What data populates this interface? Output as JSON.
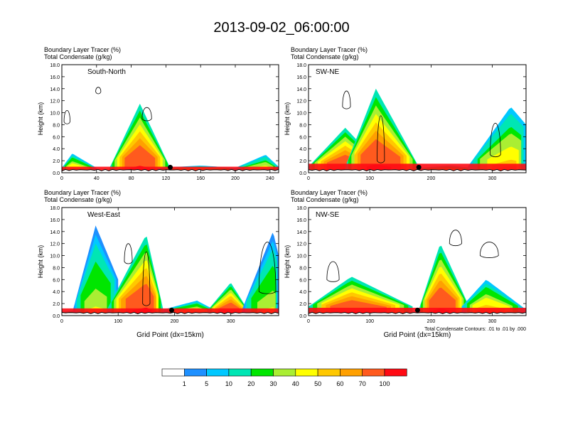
{
  "page": {
    "title": "2013-09-02_06:00:00",
    "contour_note": "Total Condensate Contours: .01 to .01 by .000"
  },
  "colors": {
    "levels": [
      "#ffffff",
      "#1e90ff",
      "#00c8ff",
      "#00e6b4",
      "#00e600",
      "#aaee33",
      "#ffff00",
      "#ffc800",
      "#ffa000",
      "#ff5a1e",
      "#ff0a14"
    ],
    "contour": "#000000",
    "terrain": "#000000"
  },
  "colorbar": {
    "labels": [
      "1",
      "5",
      "10",
      "20",
      "30",
      "40",
      "50",
      "60",
      "70",
      "100"
    ]
  },
  "chart_data": [
    {
      "type": "heatmap",
      "panel_label": "South-North",
      "fields": [
        "Boundary Layer Tracer   (%)",
        "Total Condensate   (g/kg)"
      ],
      "ylabel": "Height (km)",
      "xlabel": "",
      "ylim": [
        0,
        18
      ],
      "yticks": [
        "0.0",
        "2.0",
        "4.0",
        "6.0",
        "8.0",
        "10.0",
        "12.0",
        "14.0",
        "16.0",
        "18.0"
      ],
      "xlim": [
        0,
        250
      ],
      "xticks": [
        0,
        40,
        80,
        120,
        160,
        200,
        240
      ],
      "plumes": [
        {
          "x": [
            0,
            12,
            40
          ],
          "top": [
            0.8,
            3.2,
            0.8
          ],
          "peak": 70
        },
        {
          "x": [
            55,
            90,
            125
          ],
          "top": [
            0.8,
            11.5,
            0.8
          ],
          "peak": 100
        },
        {
          "x": [
            110,
            160,
            200
          ],
          "top": [
            0.8,
            1.2,
            0.8
          ],
          "peak": 80
        },
        {
          "x": [
            200,
            235,
            250
          ],
          "top": [
            0.8,
            3.0,
            1.0
          ],
          "peak": 60
        }
      ],
      "base_top": 1.0,
      "contours": [
        {
          "x": [
            90,
            98,
            101
          ],
          "y": [
            9,
            11.5,
            10
          ]
        },
        {
          "x": [
            1,
            6,
            8
          ],
          "y": [
            8.5,
            11,
            9
          ]
        },
        {
          "x": [
            38,
            42,
            44
          ],
          "y": [
            13.5,
            14.5,
            14
          ]
        }
      ],
      "marker": {
        "x": 125,
        "y": 0.9
      }
    },
    {
      "type": "heatmap",
      "panel_label": "SW-NE",
      "fields": [
        "Boundary Layer Tracer   (%)",
        "Total Condensate   (g/kg)"
      ],
      "ylabel": "Height (km)",
      "xlabel": "",
      "ylim": [
        0,
        18
      ],
      "yticks": [
        "0.0",
        "2.0",
        "4.0",
        "6.0",
        "8.0",
        "10.0",
        "12.0",
        "14.0",
        "16.0",
        "18.0"
      ],
      "xlim": [
        0,
        355
      ],
      "xticks": [
        0,
        100,
        200,
        300
      ],
      "plumes": [
        {
          "x": [
            0,
            60,
            120
          ],
          "top": [
            1.0,
            7.5,
            1.0
          ],
          "peak": 100
        },
        {
          "x": [
            60,
            110,
            180
          ],
          "top": [
            1.0,
            14.0,
            1.0
          ],
          "peak": 100
        },
        {
          "x": [
            180,
            230,
            270
          ],
          "top": [
            0.8,
            1.2,
            0.8
          ],
          "peak": 70
        },
        {
          "x": [
            260,
            330,
            355
          ],
          "top": [
            1.0,
            11.0,
            8.0
          ],
          "peak": 60
        }
      ],
      "base_top": 1.5,
      "contours": [
        {
          "x": [
            55,
            62,
            68
          ],
          "y": [
            11,
            14.5,
            12
          ]
        },
        {
          "x": [
            112,
            118,
            124
          ],
          "y": [
            2,
            12,
            4
          ]
        },
        {
          "x": [
            295,
            305,
            312
          ],
          "y": [
            3,
            10,
            6
          ]
        }
      ],
      "marker": {
        "x": 180,
        "y": 0.9
      }
    },
    {
      "type": "heatmap",
      "panel_label": "West-East",
      "fields": [
        "Boundary Layer Tracer   (%)",
        "Total Condensate   (g/kg)"
      ],
      "ylabel": "Height (km)",
      "xlabel": "Grid Point (dx=15km)",
      "ylim": [
        0,
        18
      ],
      "yticks": [
        "0.0",
        "2.0",
        "4.0",
        "6.0",
        "8.0",
        "10.0",
        "12.0",
        "14.0",
        "16.0",
        "18.0"
      ],
      "xlim": [
        0,
        385
      ],
      "xticks": [
        0,
        100,
        200,
        300
      ],
      "plumes": [
        {
          "x": [
            0,
            30,
            60
          ],
          "top": [
            0.6,
            1.0,
            0.6
          ],
          "peak": 60
        },
        {
          "x": [
            20,
            60,
            100
          ],
          "top": [
            1.0,
            15.0,
            6.0
          ],
          "peak": 40
        },
        {
          "x": [
            80,
            150,
            180
          ],
          "top": [
            1.0,
            13.5,
            1.0
          ],
          "peak": 100
        },
        {
          "x": [
            180,
            240,
            270
          ],
          "top": [
            1.0,
            2.5,
            1.0
          ],
          "peak": 70
        },
        {
          "x": [
            260,
            300,
            330
          ],
          "top": [
            1.0,
            5.5,
            1.0
          ],
          "peak": 100
        },
        {
          "x": [
            320,
            375,
            385
          ],
          "top": [
            1.0,
            14.0,
            10.0
          ],
          "peak": 40
        }
      ],
      "base_top": 1.2,
      "contours": [
        {
          "x": [
            110,
            118,
            124
          ],
          "y": [
            9,
            13,
            10
          ]
        },
        {
          "x": [
            145,
            150,
            158
          ],
          "y": [
            2,
            13.5,
            3
          ]
        },
        {
          "x": [
            350,
            365,
            380
          ],
          "y": [
            5,
            15,
            4
          ]
        }
      ],
      "marker": {
        "x": 195,
        "y": 0.9
      }
    },
    {
      "type": "heatmap",
      "panel_label": "NW-SE",
      "fields": [
        "Boundary Layer Tracer   (%)",
        "Total Condensate   (g/kg)"
      ],
      "ylabel": "Height (km)",
      "xlabel": "Grid Point (dx=15km)",
      "ylim": [
        0,
        18
      ],
      "yticks": [
        "0.0",
        "2.0",
        "4.0",
        "6.0",
        "8.0",
        "10.0",
        "12.0",
        "14.0",
        "16.0",
        "18.0"
      ],
      "xlim": [
        0,
        355
      ],
      "xticks": [
        0,
        100,
        200,
        300
      ],
      "plumes": [
        {
          "x": [
            0,
            70,
            170
          ],
          "top": [
            1.5,
            6.5,
            1.5
          ],
          "peak": 100
        },
        {
          "x": [
            180,
            215,
            260
          ],
          "top": [
            1.0,
            12.0,
            2.0
          ],
          "peak": 100
        },
        {
          "x": [
            250,
            290,
            355
          ],
          "top": [
            1.5,
            6.0,
            1.0
          ],
          "peak": 70
        }
      ],
      "base_top": 1.3,
      "contours": [
        {
          "x": [
            30,
            40,
            50
          ],
          "y": [
            6,
            10,
            7
          ]
        },
        {
          "x": [
            230,
            240,
            250
          ],
          "y": [
            12,
            15,
            13
          ]
        },
        {
          "x": [
            280,
            295,
            310
          ],
          "y": [
            10,
            13,
            11
          ]
        }
      ],
      "marker": {
        "x": 178,
        "y": 0.9
      }
    }
  ]
}
